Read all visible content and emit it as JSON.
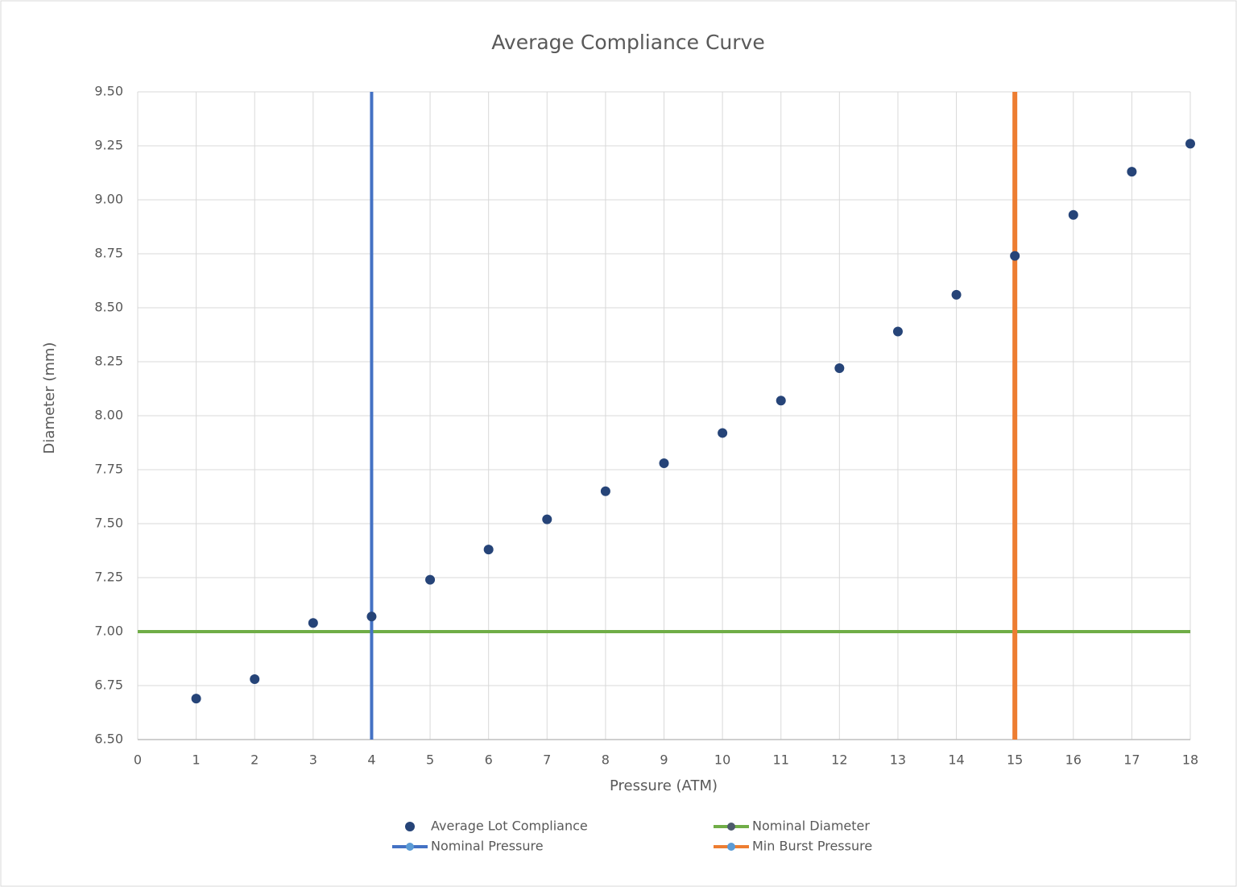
{
  "chart_data": {
    "type": "scatter",
    "title": "Average Compliance Curve",
    "x_label": "Pressure (ATM)",
    "y_label": "Diameter (mm)",
    "xlim": [
      0,
      18
    ],
    "ylim": [
      6.5,
      9.5
    ],
    "xticks": [
      0,
      1,
      2,
      3,
      4,
      5,
      6,
      7,
      8,
      9,
      10,
      11,
      12,
      13,
      14,
      15,
      16,
      17,
      18
    ],
    "yticks": [
      {
        "value": 6.5,
        "label": "6.50"
      },
      {
        "value": 6.75,
        "label": "6.75"
      },
      {
        "value": 7,
        "label": "7.00"
      },
      {
        "value": 7.25,
        "label": "7.25"
      },
      {
        "value": 7.5,
        "label": "7.50"
      },
      {
        "value": 7.75,
        "label": "7.75"
      },
      {
        "value": 8,
        "label": "8.00"
      },
      {
        "value": 8.25,
        "label": "8.25"
      },
      {
        "value": 8.5,
        "label": "8.50"
      },
      {
        "value": 8.75,
        "label": "8.75"
      },
      {
        "value": 9,
        "label": "9.00"
      },
      {
        "value": 9.25,
        "label": "9.25"
      },
      {
        "value": 9.5,
        "label": "9.50"
      }
    ],
    "grid": true,
    "legend": "bottom",
    "series": [
      {
        "name": "Average Lot Compliance",
        "color": "#264478",
        "mode": "markers",
        "x": [
          1,
          2,
          3,
          4,
          5,
          6,
          7,
          8,
          9,
          10,
          11,
          12,
          13,
          14,
          15,
          16,
          17,
          18
        ],
        "values": [
          6.69,
          6.78,
          7.04,
          7.07,
          7.24,
          7.38,
          7.52,
          7.65,
          7.78,
          7.92,
          8.07,
          8.22,
          8.39,
          8.56,
          8.74,
          8.93,
          9.13,
          9.26
        ]
      },
      {
        "name": "Nominal Diameter",
        "color": "#70ad47",
        "mode": "line",
        "x": [
          0,
          18
        ],
        "values": [
          7,
          7
        ]
      },
      {
        "name": "Nominal Pressure",
        "color": "#4472c4",
        "mode": "line",
        "x": [
          4,
          4
        ],
        "values": [
          6.5,
          9.5
        ]
      },
      {
        "name": "Min Burst Pressure",
        "color": "#ed7d31",
        "mode": "line",
        "x": [
          15,
          15
        ],
        "values": [
          6.5,
          9.5
        ]
      }
    ]
  }
}
